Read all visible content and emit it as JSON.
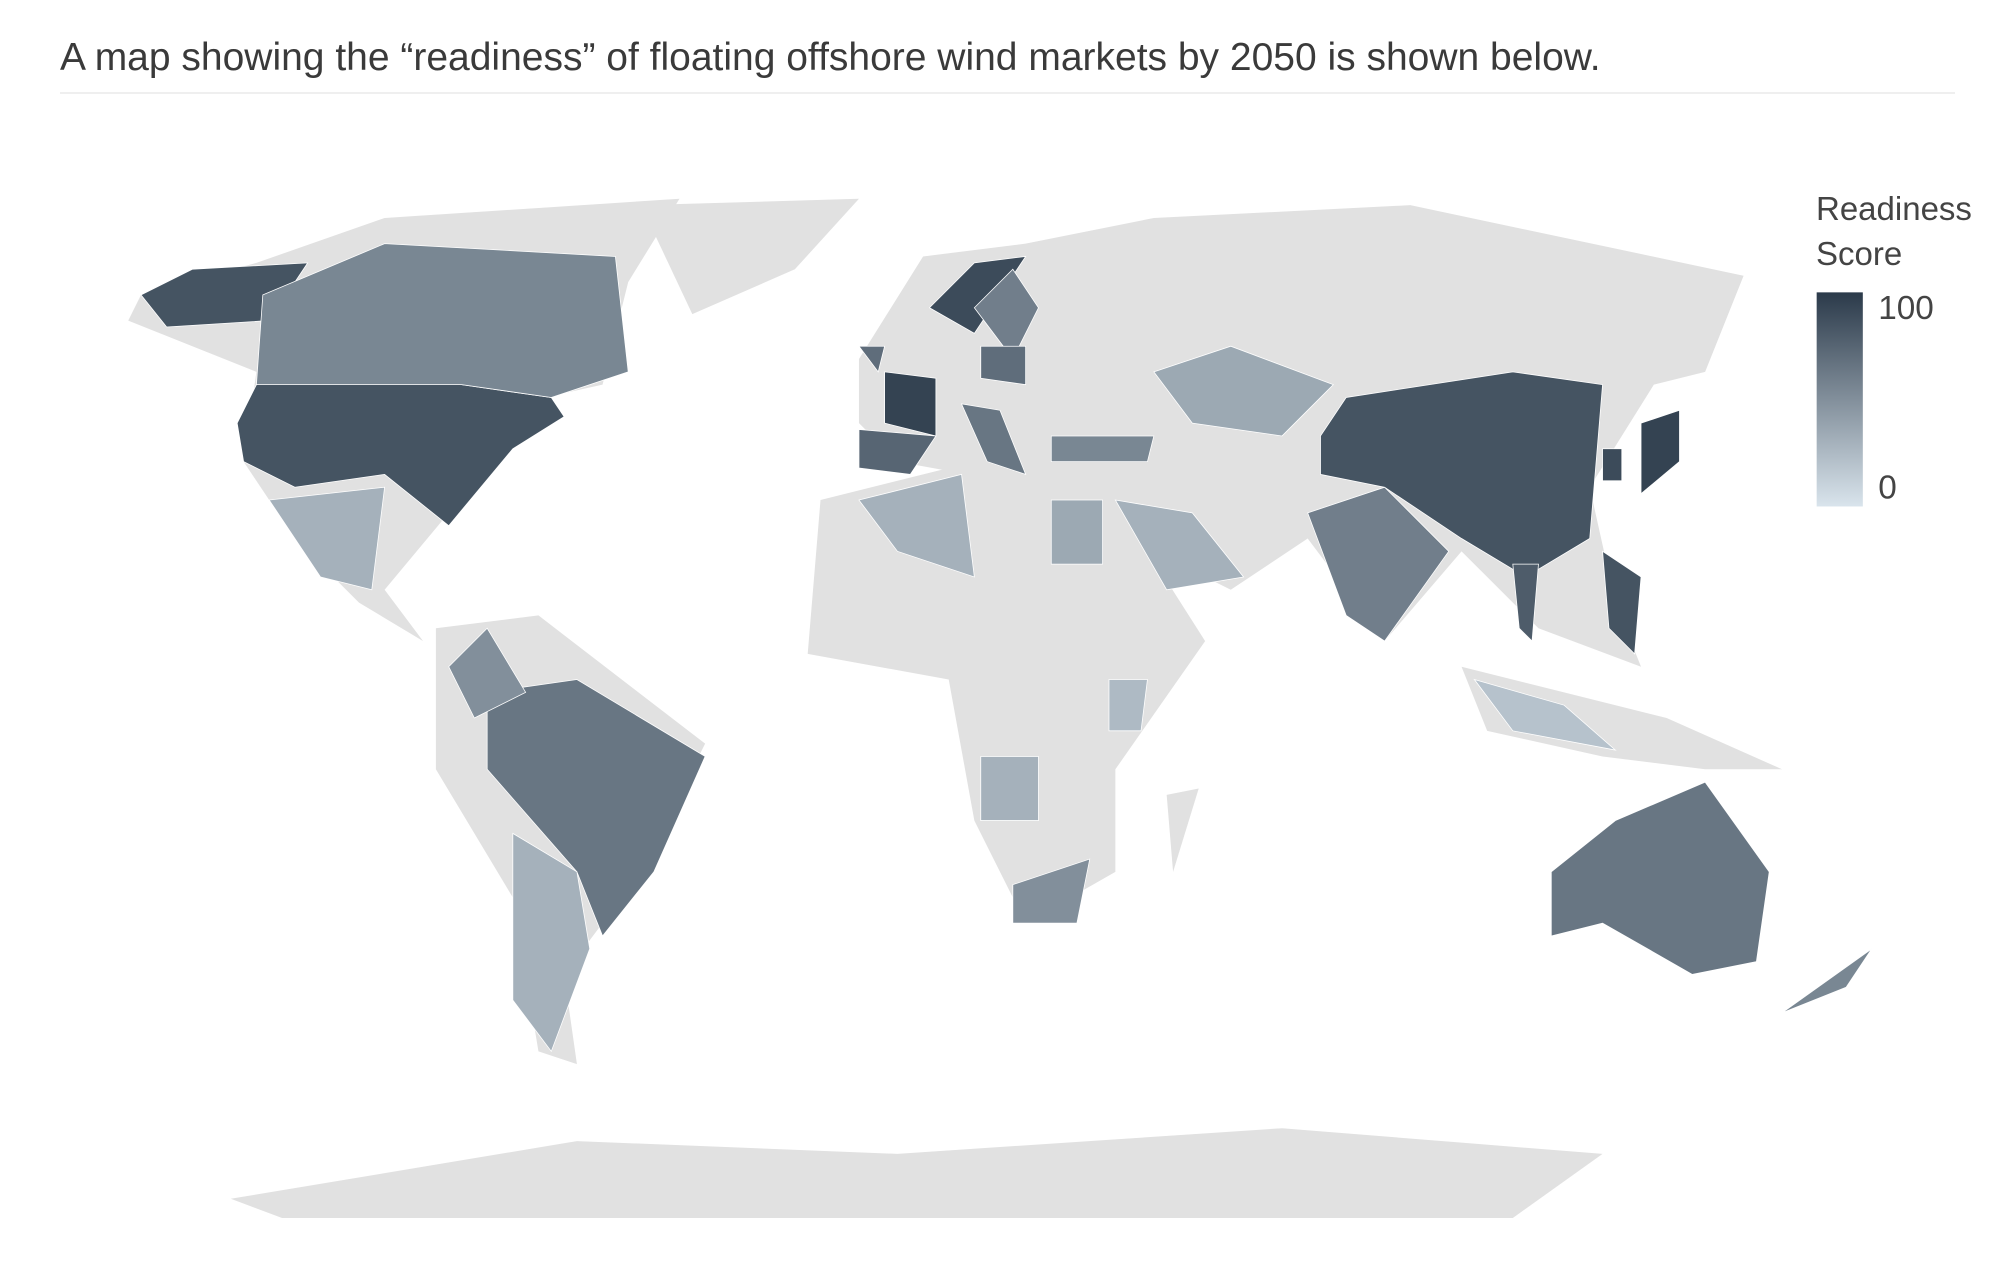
{
  "header": {
    "title": "A map showing the “readiness” of floating offshore wind markets by 2050 is shown below."
  },
  "chart_data": {
    "type": "choropleth",
    "legend_title": "Readiness Score",
    "range": [
      0,
      100
    ],
    "ticks": [
      0,
      100
    ],
    "colors": [
      "#d9e4ec",
      "#2b3a4a"
    ],
    "land_color": "#e1e1e1",
    "values": [
      85,
      55,
      30,
      65,
      50,
      30,
      95,
      75,
      70,
      90,
      60,
      70,
      65,
      55,
      35,
      30,
      35,
      30,
      60,
      85,
      95,
      90,
      80,
      85,
      65,
      50,
      30,
      25,
      55,
      20
    ]
  }
}
